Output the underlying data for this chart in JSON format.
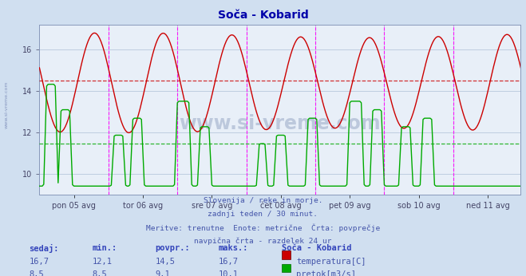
{
  "title": "Soča - Kobarid",
  "bg_color": "#d0dff0",
  "plot_bg_color": "#e8eff8",
  "grid_color": "#b8c8dc",
  "x_labels": [
    "pon 05 avg",
    "tor 06 avg",
    "sre 07 avg",
    "čet 08 avg",
    "pet 09 avg",
    "sob 10 avg",
    "ned 11 avg"
  ],
  "n_days": 7,
  "n_points_per_day": 48,
  "temp_min": 12.1,
  "temp_max": 16.7,
  "temp_avg": 14.5,
  "flow_min": 8.5,
  "flow_max": 10.1,
  "flow_avg": 9.1,
  "temp_color": "#cc0000",
  "flow_color": "#00aa00",
  "vline_color": "#ff00ff",
  "vline_dashed_color": "#8888dd",
  "subtitle_lines": [
    "Slovenija / reke in morje.",
    "zadnji teden / 30 minut.",
    "Meritve: trenutne  Enote: metrične  Črta: povprečje",
    "navpična črta - razdelek 24 ur"
  ],
  "table_headers": [
    "sedaj:",
    "min.:",
    "povpr.:",
    "maks.:",
    "Soča - Kobarid"
  ],
  "table_row1": [
    "16,7",
    "12,1",
    "14,5",
    "16,7"
  ],
  "table_row2": [
    "8,5",
    "8,5",
    "9,1",
    "10,1"
  ],
  "table_label1": "temperatura[C]",
  "table_label2": "pretok[m3/s]",
  "ylim": [
    9.0,
    17.2
  ],
  "yticks": [
    10,
    12,
    14,
    16
  ],
  "flow_display_min": 8.5,
  "flow_display_max": 10.5,
  "watermark": "www.si-vreme.com"
}
